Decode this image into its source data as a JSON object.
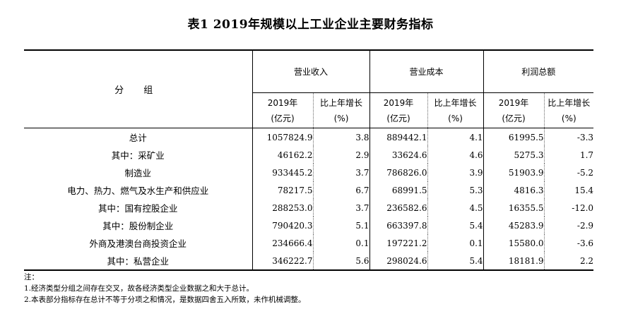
{
  "title": "表1  2019年规模以上工业企业主要财务指标",
  "table": {
    "group_header": "分  组",
    "metrics": [
      {
        "label": "营业收入"
      },
      {
        "label": "营业成本"
      },
      {
        "label": "利润总额"
      }
    ],
    "sub_headers": {
      "value_line1": "2019年",
      "value_line2": "(亿元)",
      "growth_line1": "比上年增长",
      "growth_line2": "(%)"
    },
    "rows": [
      {
        "category": "总计",
        "revenue": "1057824.9",
        "revenue_growth": "3.8",
        "cost": "889442.1",
        "cost_growth": "4.1",
        "profit": "61995.5",
        "profit_growth": "-3.3"
      },
      {
        "category": "其中：采矿业",
        "revenue": "46162.2",
        "revenue_growth": "2.9",
        "cost": "33624.6",
        "cost_growth": "4.6",
        "profit": "5275.3",
        "profit_growth": "1.7"
      },
      {
        "category": "制造业",
        "revenue": "933445.2",
        "revenue_growth": "3.7",
        "cost": "786826.0",
        "cost_growth": "3.9",
        "profit": "51903.9",
        "profit_growth": "-5.2"
      },
      {
        "category": "电力、热力、燃气及水生产和供应业",
        "revenue": "78217.5",
        "revenue_growth": "6.7",
        "cost": "68991.5",
        "cost_growth": "5.3",
        "profit": "4816.3",
        "profit_growth": "15.4"
      },
      {
        "category": "其中：国有控股企业",
        "revenue": "288253.0",
        "revenue_growth": "3.7",
        "cost": "236582.6",
        "cost_growth": "4.5",
        "profit": "16355.5",
        "profit_growth": "-12.0"
      },
      {
        "category": "其中：股份制企业",
        "revenue": "790420.3",
        "revenue_growth": "5.1",
        "cost": "663397.8",
        "cost_growth": "5.4",
        "profit": "45283.9",
        "profit_growth": "-2.9"
      },
      {
        "category": "外商及港澳台商投资企业",
        "revenue": "234666.4",
        "revenue_growth": "0.1",
        "cost": "197221.2",
        "cost_growth": "0.1",
        "profit": "15580.0",
        "profit_growth": "-3.6"
      },
      {
        "category": "其中：私营企业",
        "revenue": "346222.7",
        "revenue_growth": "5.6",
        "cost": "298024.6",
        "cost_growth": "5.4",
        "profit": "18181.9",
        "profit_growth": "2.2"
      }
    ]
  },
  "notes": {
    "heading": "注：",
    "items": [
      "1.经济类型分组之间存在交叉，故各经济类型企业数据之和大于总计。",
      "2.本表部分指标存在总计不等于分项之和情况，是数据四舍五入所致，未作机械调整。"
    ]
  }
}
